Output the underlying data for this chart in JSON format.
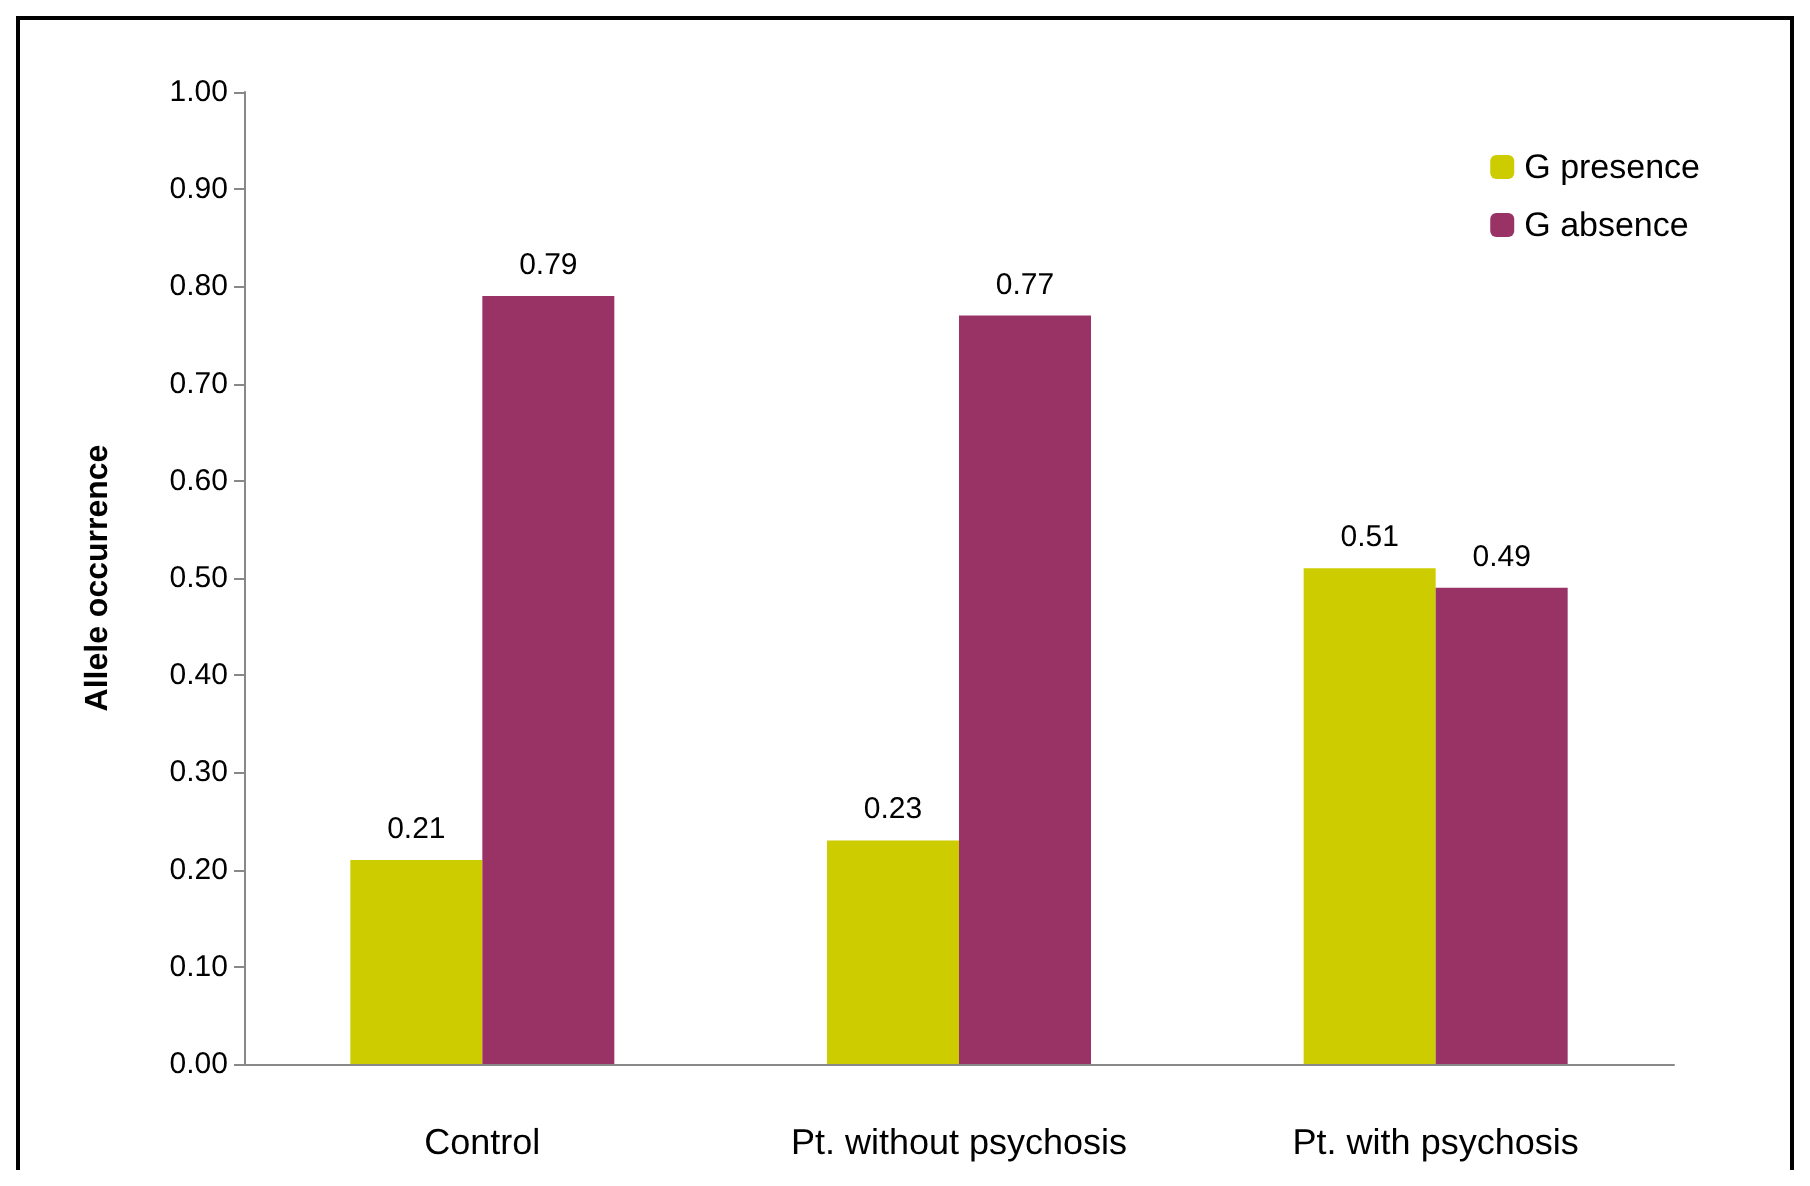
{
  "chart_data": {
    "type": "bar",
    "ylabel": "Allele occurrence",
    "categories": [
      "Control",
      "Pt. without psychosis",
      "Pt. with psychosis"
    ],
    "series": [
      {
        "name": "G presence",
        "color": "#cccc00",
        "values": [
          0.21,
          0.23,
          0.51
        ]
      },
      {
        "name": "G absence",
        "color": "#993366",
        "values": [
          0.79,
          0.77,
          0.49
        ]
      }
    ],
    "ylim": [
      0,
      1
    ],
    "yticks": [
      {
        "value": 0,
        "label": "0.00"
      },
      {
        "value": 0.1,
        "label": "0.10"
      },
      {
        "value": 0.2,
        "label": "0.20"
      },
      {
        "value": 0.3,
        "label": "0.30"
      },
      {
        "value": 0.4,
        "label": "0.40"
      },
      {
        "value": 0.5,
        "label": "0.50"
      },
      {
        "value": 0.6,
        "label": "0.60"
      },
      {
        "value": 0.7,
        "label": "0.70"
      },
      {
        "value": 0.8,
        "label": "0.80"
      },
      {
        "value": 0.9,
        "label": "0.90"
      },
      {
        "value": 1,
        "label": "1.00"
      }
    ],
    "data_labels": true,
    "legend": "top right",
    "grid": false
  }
}
